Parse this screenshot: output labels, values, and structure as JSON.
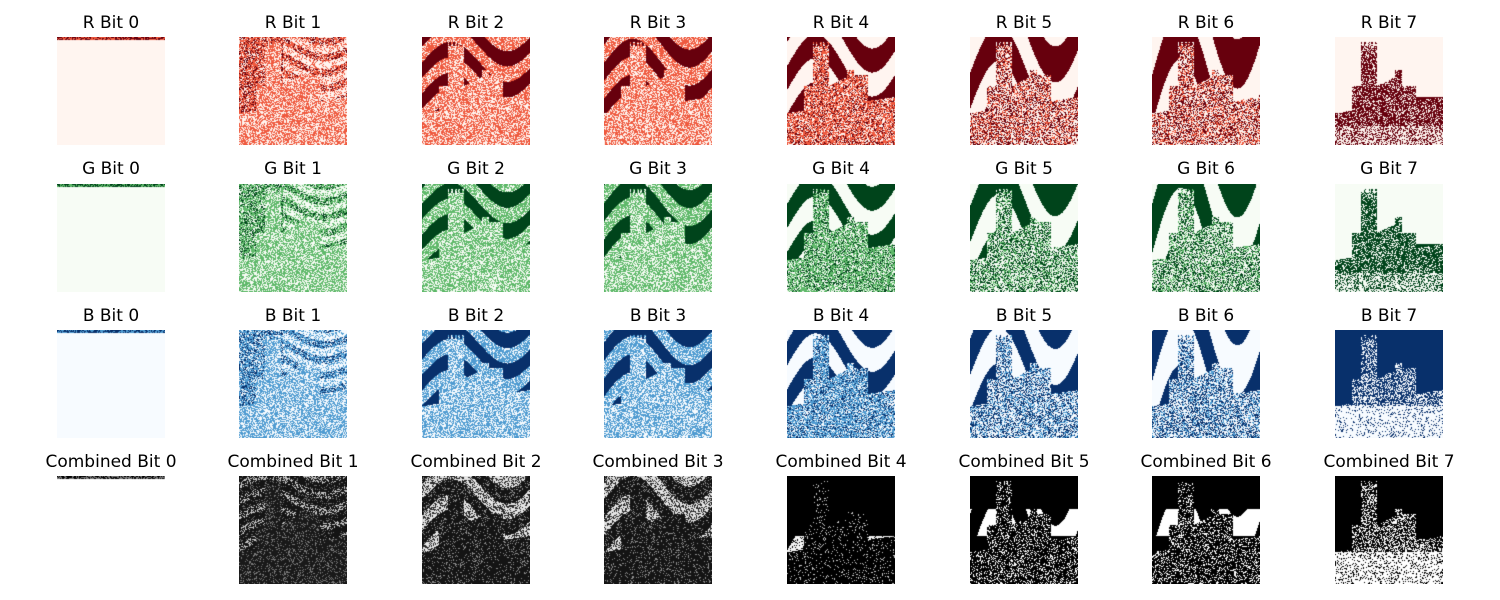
{
  "figure": {
    "rows": [
      {
        "channel": "R",
        "colors": {
          "dark": "#67000d",
          "mid": "#ef5a3f",
          "light": "#fff5f0"
        },
        "panels": [
          {
            "title": "R Bit 0",
            "image": "thin-top-strip"
          },
          {
            "title": "R Bit 1",
            "image": "noise-with-castle-outline"
          },
          {
            "title": "R Bit 2",
            "image": "noise-with-sky-stripes"
          },
          {
            "title": "R Bit 3",
            "image": "noise-with-sky-stripes"
          },
          {
            "title": "R Bit 4",
            "image": "castle-silhouette-stripes"
          },
          {
            "title": "R Bit 5",
            "image": "castle-silhouette"
          },
          {
            "title": "R Bit 6",
            "image": "castle-silhouette"
          },
          {
            "title": "R Bit 7",
            "image": "castle-tower-light"
          }
        ]
      },
      {
        "channel": "G",
        "colors": {
          "dark": "#00441b",
          "mid": "#5fb96a",
          "light": "#f7fcf5"
        },
        "panels": [
          {
            "title": "G Bit 0",
            "image": "thin-top-strip"
          },
          {
            "title": "G Bit 1",
            "image": "noise-with-castle-outline"
          },
          {
            "title": "G Bit 2",
            "image": "noise-with-sky-stripes"
          },
          {
            "title": "G Bit 3",
            "image": "noise-with-sky-stripes"
          },
          {
            "title": "G Bit 4",
            "image": "castle-silhouette-stripes"
          },
          {
            "title": "G Bit 5",
            "image": "castle-silhouette"
          },
          {
            "title": "G Bit 6",
            "image": "castle-silhouette"
          },
          {
            "title": "G Bit 7",
            "image": "castle-tower-light"
          }
        ]
      },
      {
        "channel": "B",
        "colors": {
          "dark": "#08306b",
          "mid": "#4f9bd1",
          "light": "#f7fbff"
        },
        "panels": [
          {
            "title": "B Bit 0",
            "image": "thin-top-strip"
          },
          {
            "title": "B Bit 1",
            "image": "noise-with-castle-outline"
          },
          {
            "title": "B Bit 2",
            "image": "noise-with-sky-stripes"
          },
          {
            "title": "B Bit 3",
            "image": "noise-with-sky-stripes"
          },
          {
            "title": "B Bit 4",
            "image": "castle-silhouette-stripes"
          },
          {
            "title": "B Bit 5",
            "image": "castle-silhouette"
          },
          {
            "title": "B Bit 6",
            "image": "castle-silhouette"
          },
          {
            "title": "B Bit 7",
            "image": "castle-tower-dark"
          }
        ]
      },
      {
        "channel": "Combined",
        "colors": {
          "dark": "#000000",
          "mid": "#7a7a7a",
          "light": "#ffffff"
        },
        "panels": [
          {
            "title": "Combined Bit 0",
            "image": "thin-top-strip"
          },
          {
            "title": "Combined Bit 1",
            "image": "noise-with-castle-outline"
          },
          {
            "title": "Combined Bit 2",
            "image": "noise-with-sky-stripes"
          },
          {
            "title": "Combined Bit 3",
            "image": "noise-with-sky-stripes"
          },
          {
            "title": "Combined Bit 4",
            "image": "castle-silhouette-stripes"
          },
          {
            "title": "Combined Bit 5",
            "image": "castle-silhouette"
          },
          {
            "title": "Combined Bit 6",
            "image": "castle-silhouette"
          },
          {
            "title": "Combined Bit 7",
            "image": "castle-tower-dark"
          }
        ]
      }
    ]
  }
}
